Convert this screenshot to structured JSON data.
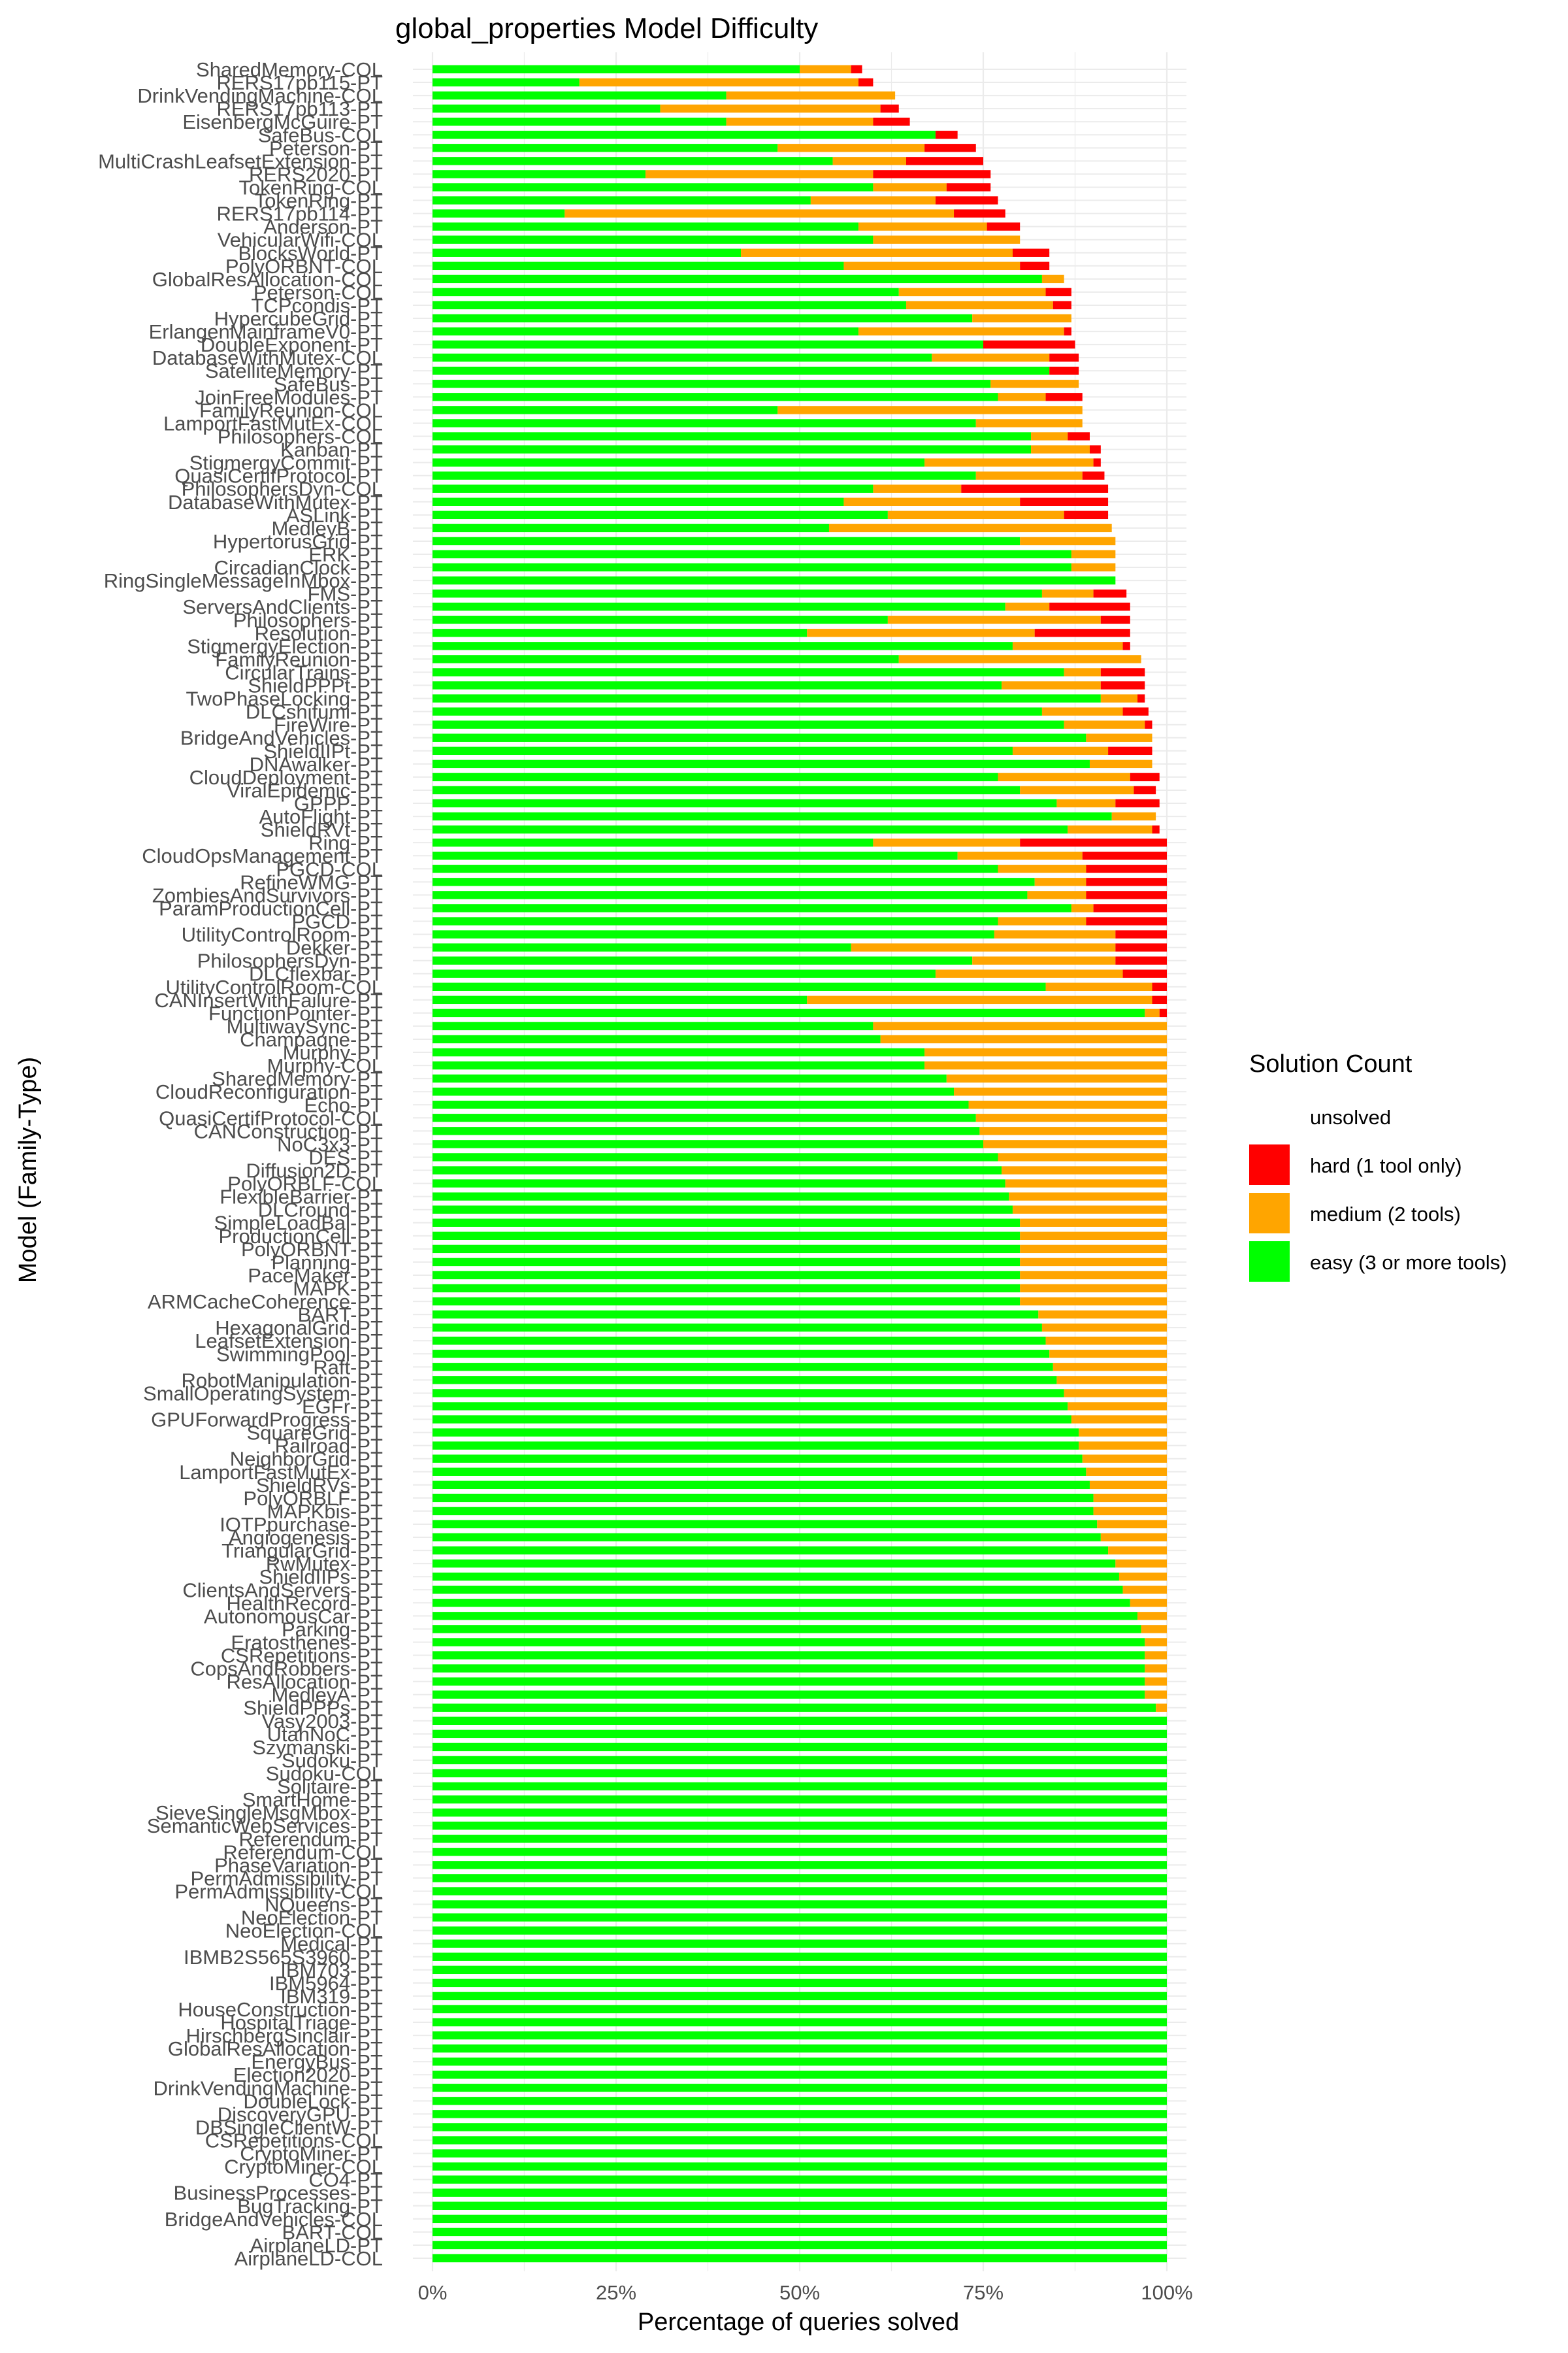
{
  "chart_data": {
    "type": "bar",
    "orientation": "horizontal",
    "stacked": true,
    "title": "global_properties Model Difficulty",
    "xlabel": "Percentage of queries solved",
    "ylabel": "Model (Family-Type)",
    "xlim": [
      0,
      100
    ],
    "x_ticks": [
      "0%",
      "25%",
      "50%",
      "75%",
      "100%"
    ],
    "grid": true,
    "legend_position": "right",
    "legend": {
      "title": "Solution Count",
      "entries": [
        {
          "key": "unsolved",
          "label": "unsolved",
          "color": "#ffffff"
        },
        {
          "key": "hard",
          "label": "hard (1 tool only)",
          "color": "#ff0000"
        },
        {
          "key": "medium",
          "label": "medium (2 tools)",
          "color": "#ffa500"
        },
        {
          "key": "easy",
          "label": "easy (3 or more tools)",
          "color": "#00ff00"
        }
      ]
    },
    "columns": [
      "model",
      "easy",
      "medium",
      "hard"
    ],
    "rows": [
      [
        "SharedMemory-COL",
        50,
        7,
        1.5
      ],
      [
        "RERS17pb115-PT",
        20,
        38,
        2
      ],
      [
        "DrinkVendingMachine-COL",
        40,
        23,
        0
      ],
      [
        "RERS17pb113-PT",
        31,
        30,
        2.5
      ],
      [
        "EisenbergMcGuire-PT",
        40,
        20,
        5
      ],
      [
        "SafeBus-COL",
        68.5,
        0,
        3
      ],
      [
        "Peterson-PT",
        47,
        20,
        7
      ],
      [
        "MultiCrashLeafsetExtension-PT",
        54.5,
        10,
        10.5
      ],
      [
        "RERS2020-PT",
        29,
        31,
        16
      ],
      [
        "TokenRing-COL",
        60,
        10,
        6
      ],
      [
        "TokenRing-PT",
        51.5,
        17,
        8.5
      ],
      [
        "RERS17pb114-PT",
        18,
        53,
        7
      ],
      [
        "Anderson-PT",
        58,
        17.5,
        4.5
      ],
      [
        "VehicularWifi-COL",
        60,
        20,
        0
      ],
      [
        "BlocksWorld-PT",
        42,
        37,
        5
      ],
      [
        "PolyORBNT-COL",
        56,
        24,
        4
      ],
      [
        "GlobalResAllocation-COL",
        83,
        3,
        0
      ],
      [
        "Peterson-COL",
        63.5,
        20,
        3.5
      ],
      [
        "TCPcondis-PT",
        64.5,
        20,
        2.5
      ],
      [
        "HypercubeGrid-PT",
        73.5,
        13.5,
        0
      ],
      [
        "ErlangenMainframeV0-PT",
        58,
        28,
        1
      ],
      [
        "DoubleExponent-PT",
        75,
        0,
        12.5
      ],
      [
        "DatabaseWithMutex-COL",
        68,
        16,
        4
      ],
      [
        "SatelliteMemory-PT",
        84,
        0,
        4
      ],
      [
        "SafeBus-PT",
        76,
        12,
        0
      ],
      [
        "JoinFreeModules-PT",
        77,
        6.5,
        5
      ],
      [
        "FamilyReunion-COL",
        47,
        41.5,
        0
      ],
      [
        "LamportFastMutEx-COL",
        74,
        14.5,
        0
      ],
      [
        "Philosophers-COL",
        81.5,
        5,
        3
      ],
      [
        "Kanban-PT",
        81.5,
        8,
        1.5
      ],
      [
        "StigmergyCommit-PT",
        67,
        23,
        1
      ],
      [
        "QuasiCertifProtocol-PT",
        74,
        14.5,
        3
      ],
      [
        "PhilosophersDyn-COL",
        60,
        12,
        20
      ],
      [
        "DatabaseWithMutex-PT",
        56,
        24,
        12
      ],
      [
        "ASLink-PT",
        62,
        24,
        6
      ],
      [
        "MedleyB-PT",
        54,
        38.5,
        0
      ],
      [
        "HypertorusGrid-PT",
        80,
        13,
        0
      ],
      [
        "ERK-PT",
        87,
        6,
        0
      ],
      [
        "CircadianClock-PT",
        87,
        6,
        0
      ],
      [
        "RingSingleMessageInMbox-PT",
        93,
        0,
        0
      ],
      [
        "FMS-PT",
        83,
        7,
        4.5
      ],
      [
        "ServersAndClients-PT",
        78,
        6,
        11
      ],
      [
        "Philosophers-PT",
        62,
        29,
        4
      ],
      [
        "Resolution-PT",
        51,
        31,
        13
      ],
      [
        "StigmergyElection-PT",
        79,
        15,
        1
      ],
      [
        "FamilyReunion-PT",
        63.5,
        33,
        0
      ],
      [
        "CircularTrains-PT",
        86,
        5,
        6
      ],
      [
        "ShieldPPPt-PT",
        77.5,
        13.5,
        6
      ],
      [
        "TwoPhaseLocking-PT",
        91,
        5,
        1
      ],
      [
        "DLCshifumi-PT",
        83,
        11,
        3.5
      ],
      [
        "FireWire-PT",
        86,
        11,
        1
      ],
      [
        "BridgeAndVehicles-PT",
        89,
        9,
        0
      ],
      [
        "ShieldIIPt-PT",
        79,
        13,
        6
      ],
      [
        "DNAwalker-PT",
        89.5,
        8.5,
        0
      ],
      [
        "CloudDeployment-PT",
        77,
        18,
        4
      ],
      [
        "ViralEpidemic-PT",
        80,
        15.5,
        3
      ],
      [
        "GPPP-PT",
        85,
        8,
        6
      ],
      [
        "AutoFlight-PT",
        92.5,
        6,
        0
      ],
      [
        "ShieldRVt-PT",
        86.5,
        11.5,
        1
      ],
      [
        "Ring-PT",
        60,
        20,
        20
      ],
      [
        "CloudOpsManagement-PT",
        71.5,
        17,
        11.5
      ],
      [
        "PGCD-COL",
        77,
        12,
        11
      ],
      [
        "RefineWMG-PT",
        82,
        7,
        11
      ],
      [
        "ZombiesAndSurvivors-PT",
        81,
        8,
        11
      ],
      [
        "ParamProductionCell-PT",
        87,
        3,
        10
      ],
      [
        "PGCD-PT",
        77,
        12,
        11
      ],
      [
        "UtilityControlRoom-PT",
        76.5,
        16.5,
        7
      ],
      [
        "Dekker-PT",
        57,
        36,
        7
      ],
      [
        "PhilosophersDyn-PT",
        73.5,
        19.5,
        7
      ],
      [
        "DLCflexbar-PT",
        68.5,
        25.5,
        6
      ],
      [
        "UtilityControlRoom-COL",
        83.5,
        14.5,
        2
      ],
      [
        "CANInsertWithFailure-PT",
        51,
        47,
        2
      ],
      [
        "FunctionPointer-PT",
        97,
        2,
        1
      ],
      [
        "MultiwaySync-PT",
        60,
        40,
        0
      ],
      [
        "Champagne-PT",
        61,
        39,
        0
      ],
      [
        "Murphy-PT",
        67,
        33,
        0
      ],
      [
        "Murphy-COL",
        67,
        33,
        0
      ],
      [
        "SharedMemory-PT",
        70,
        30,
        0
      ],
      [
        "CloudReconfiguration-PT",
        71,
        29,
        0
      ],
      [
        "Echo-PT",
        73,
        27,
        0
      ],
      [
        "QuasiCertifProtocol-COL",
        74,
        26,
        0
      ],
      [
        "CANConstruction-PT",
        74.5,
        25.5,
        0
      ],
      [
        "NoC3x3-PT",
        75,
        25,
        0
      ],
      [
        "DES-PT",
        77,
        23,
        0
      ],
      [
        "Diffusion2D-PT",
        77.5,
        22.5,
        0
      ],
      [
        "PolyORBLF-COL",
        78,
        22,
        0
      ],
      [
        "FlexibleBarrier-PT",
        78.5,
        21.5,
        0
      ],
      [
        "DLCround-PT",
        79,
        21,
        0
      ],
      [
        "SimpleLoadBal-PT",
        80,
        20,
        0
      ],
      [
        "ProductionCell-PT",
        80,
        20,
        0
      ],
      [
        "PolyORBNT-PT",
        80,
        20,
        0
      ],
      [
        "Planning-PT",
        80,
        20,
        0
      ],
      [
        "PaceMaker-PT",
        80,
        20,
        0
      ],
      [
        "MAPK-PT",
        80,
        20,
        0
      ],
      [
        "ARMCacheCoherence-PT",
        80,
        20,
        0
      ],
      [
        "BART-PT",
        82.5,
        17.5,
        0
      ],
      [
        "HexagonalGrid-PT",
        83,
        17,
        0
      ],
      [
        "LeafsetExtension-PT",
        83.5,
        16.5,
        0
      ],
      [
        "SwimmingPool-PT",
        84,
        16,
        0
      ],
      [
        "Raft-PT",
        84.5,
        15.5,
        0
      ],
      [
        "RobotManipulation-PT",
        85,
        15,
        0
      ],
      [
        "SmallOperatingSystem-PT",
        86,
        14,
        0
      ],
      [
        "EGFr-PT",
        86.5,
        13.5,
        0
      ],
      [
        "GPUForwardProgress-PT",
        87,
        13,
        0
      ],
      [
        "SquareGrid-PT",
        88,
        12,
        0
      ],
      [
        "Railroad-PT",
        88,
        12,
        0
      ],
      [
        "NeighborGrid-PT",
        88.5,
        11.5,
        0
      ],
      [
        "LamportFastMutEx-PT",
        89,
        11,
        0
      ],
      [
        "ShieldRVs-PT",
        89.5,
        10.5,
        0
      ],
      [
        "PolyORBLF-PT",
        90,
        10,
        0
      ],
      [
        "MAPKbis-PT",
        90,
        10,
        0
      ],
      [
        "IOTPpurchase-PT",
        90.5,
        9.5,
        0
      ],
      [
        "Angiogenesis-PT",
        91,
        9,
        0
      ],
      [
        "TriangularGrid-PT",
        92,
        8,
        0
      ],
      [
        "RwMutex-PT",
        93,
        7,
        0
      ],
      [
        "ShieldIIPs-PT",
        93.5,
        6.5,
        0
      ],
      [
        "ClientsAndServers-PT",
        94,
        6,
        0
      ],
      [
        "HealthRecord-PT",
        95,
        5,
        0
      ],
      [
        "AutonomousCar-PT",
        96,
        4,
        0
      ],
      [
        "Parking-PT",
        96.5,
        3.5,
        0
      ],
      [
        "Eratosthenes-PT",
        97,
        3,
        0
      ],
      [
        "CSRepetitions-PT",
        97,
        3,
        0
      ],
      [
        "CopsAndRobbers-PT",
        97,
        3,
        0
      ],
      [
        "ResAllocation-PT",
        97,
        3,
        0
      ],
      [
        "MedleyA-PT",
        97,
        3,
        0
      ],
      [
        "ShieldPPPs-PT",
        98.5,
        1.5,
        0
      ],
      [
        "Vasy2003-PT",
        100,
        0,
        0
      ],
      [
        "UtahNoC-PT",
        100,
        0,
        0
      ],
      [
        "Szymanski-PT",
        100,
        0,
        0
      ],
      [
        "Sudoku-PT",
        100,
        0,
        0
      ],
      [
        "Sudoku-COL",
        100,
        0,
        0
      ],
      [
        "Solitaire-PT",
        100,
        0,
        0
      ],
      [
        "SmartHome-PT",
        100,
        0,
        0
      ],
      [
        "SieveSingleMsgMbox-PT",
        100,
        0,
        0
      ],
      [
        "SemanticWebServices-PT",
        100,
        0,
        0
      ],
      [
        "Referendum-PT",
        100,
        0,
        0
      ],
      [
        "Referendum-COL",
        100,
        0,
        0
      ],
      [
        "PhaseVariation-PT",
        100,
        0,
        0
      ],
      [
        "PermAdmissibility-PT",
        100,
        0,
        0
      ],
      [
        "PermAdmissibility-COL",
        100,
        0,
        0
      ],
      [
        "NQueens-PT",
        100,
        0,
        0
      ],
      [
        "NeoElection-PT",
        100,
        0,
        0
      ],
      [
        "NeoElection-COL",
        100,
        0,
        0
      ],
      [
        "Medical-PT",
        100,
        0,
        0
      ],
      [
        "IBMB2S565S3960-PT",
        100,
        0,
        0
      ],
      [
        "IBM703-PT",
        100,
        0,
        0
      ],
      [
        "IBM5964-PT",
        100,
        0,
        0
      ],
      [
        "IBM319-PT",
        100,
        0,
        0
      ],
      [
        "HouseConstruction-PT",
        100,
        0,
        0
      ],
      [
        "HospitalTriage-PT",
        100,
        0,
        0
      ],
      [
        "HirschbergSinclair-PT",
        100,
        0,
        0
      ],
      [
        "GlobalResAllocation-PT",
        100,
        0,
        0
      ],
      [
        "EnergyBus-PT",
        100,
        0,
        0
      ],
      [
        "Election2020-PT",
        100,
        0,
        0
      ],
      [
        "DrinkVendingMachine-PT",
        100,
        0,
        0
      ],
      [
        "DoubleLock-PT",
        100,
        0,
        0
      ],
      [
        "DiscoveryGPU-PT",
        100,
        0,
        0
      ],
      [
        "DBSingleClientW-PT",
        100,
        0,
        0
      ],
      [
        "CSRepetitions-COL",
        100,
        0,
        0
      ],
      [
        "CryptoMiner-PT",
        100,
        0,
        0
      ],
      [
        "CryptoMiner-COL",
        100,
        0,
        0
      ],
      [
        "CO4-PT",
        100,
        0,
        0
      ],
      [
        "BusinessProcesses-PT",
        100,
        0,
        0
      ],
      [
        "BugTracking-PT",
        100,
        0,
        0
      ],
      [
        "BridgeAndVehicles-COL",
        100,
        0,
        0
      ],
      [
        "BART-COL",
        100,
        0,
        0
      ],
      [
        "AirplaneLD-PT",
        100,
        0,
        0
      ],
      [
        "AirplaneLD-COL",
        100,
        0,
        0
      ]
    ]
  }
}
